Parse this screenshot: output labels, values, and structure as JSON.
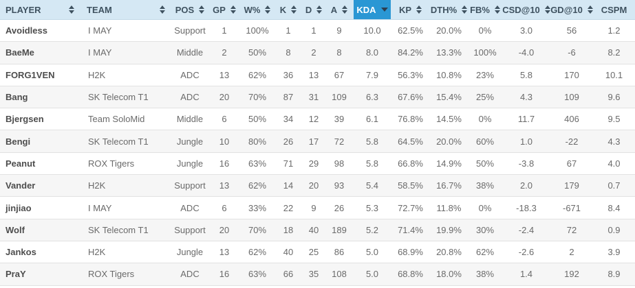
{
  "table": {
    "columns": [
      {
        "key": "player",
        "label": "PLAYER",
        "sort": "both",
        "active": false
      },
      {
        "key": "team",
        "label": "TEAM",
        "sort": "both",
        "active": false
      },
      {
        "key": "pos",
        "label": "POS",
        "sort": "both",
        "active": false
      },
      {
        "key": "gp",
        "label": "GP",
        "sort": "both",
        "active": false
      },
      {
        "key": "wpct",
        "label": "W%",
        "sort": "both",
        "active": false
      },
      {
        "key": "k",
        "label": "K",
        "sort": "both",
        "active": false
      },
      {
        "key": "d",
        "label": "D",
        "sort": "both",
        "active": false
      },
      {
        "key": "a",
        "label": "A",
        "sort": "both",
        "active": false
      },
      {
        "key": "kda",
        "label": "KDA",
        "sort": "desc",
        "active": true
      },
      {
        "key": "kp",
        "label": "KP",
        "sort": "both",
        "active": false
      },
      {
        "key": "dthpct",
        "label": "DTH%",
        "sort": "both",
        "active": false
      },
      {
        "key": "fbpct",
        "label": "FB%",
        "sort": "both",
        "active": false
      },
      {
        "key": "csd10",
        "label": "CSD@10",
        "sort": "both",
        "active": false
      },
      {
        "key": "gd10",
        "label": "GD@10",
        "sort": "both",
        "active": false
      },
      {
        "key": "cspm",
        "label": "CSPM",
        "sort": "none",
        "active": false
      }
    ],
    "rows": [
      [
        "Avoidless",
        "I MAY",
        "Support",
        "1",
        "100%",
        "1",
        "1",
        "9",
        "10.0",
        "62.5%",
        "20.0%",
        "0%",
        "3.0",
        "56",
        "1.2"
      ],
      [
        "BaeMe",
        "I MAY",
        "Middle",
        "2",
        "50%",
        "8",
        "2",
        "8",
        "8.0",
        "84.2%",
        "13.3%",
        "100%",
        "-4.0",
        "-6",
        "8.2"
      ],
      [
        "FORG1VEN",
        "H2K",
        "ADC",
        "13",
        "62%",
        "36",
        "13",
        "67",
        "7.9",
        "56.3%",
        "10.8%",
        "23%",
        "5.8",
        "170",
        "10.1"
      ],
      [
        "Bang",
        "SK Telecom T1",
        "ADC",
        "20",
        "70%",
        "87",
        "31",
        "109",
        "6.3",
        "67.6%",
        "15.4%",
        "25%",
        "4.3",
        "109",
        "9.6"
      ],
      [
        "Bjergsen",
        "Team SoloMid",
        "Middle",
        "6",
        "50%",
        "34",
        "12",
        "39",
        "6.1",
        "76.8%",
        "14.5%",
        "0%",
        "11.7",
        "406",
        "9.5"
      ],
      [
        "Bengi",
        "SK Telecom T1",
        "Jungle",
        "10",
        "80%",
        "26",
        "17",
        "72",
        "5.8",
        "64.5%",
        "20.0%",
        "60%",
        "1.0",
        "-22",
        "4.3"
      ],
      [
        "Peanut",
        "ROX Tigers",
        "Jungle",
        "16",
        "63%",
        "71",
        "29",
        "98",
        "5.8",
        "66.8%",
        "14.9%",
        "50%",
        "-3.8",
        "67",
        "4.0"
      ],
      [
        "Vander",
        "H2K",
        "Support",
        "13",
        "62%",
        "14",
        "20",
        "93",
        "5.4",
        "58.5%",
        "16.7%",
        "38%",
        "2.0",
        "179",
        "0.7"
      ],
      [
        "jinjiao",
        "I MAY",
        "ADC",
        "6",
        "33%",
        "22",
        "9",
        "26",
        "5.3",
        "72.7%",
        "11.8%",
        "0%",
        "-18.3",
        "-671",
        "8.4"
      ],
      [
        "Wolf",
        "SK Telecom T1",
        "Support",
        "20",
        "70%",
        "18",
        "40",
        "189",
        "5.2",
        "71.4%",
        "19.9%",
        "30%",
        "-2.4",
        "72",
        "0.9"
      ],
      [
        "Jankos",
        "H2K",
        "Jungle",
        "13",
        "62%",
        "40",
        "25",
        "86",
        "5.0",
        "68.9%",
        "20.8%",
        "62%",
        "-2.6",
        "2",
        "3.9"
      ],
      [
        "PraY",
        "ROX Tigers",
        "ADC",
        "16",
        "63%",
        "66",
        "35",
        "108",
        "5.0",
        "68.8%",
        "18.0%",
        "38%",
        "1.4",
        "192",
        "8.9"
      ]
    ],
    "sorted_by": "KDA",
    "sort_direction": "descending",
    "colors": {
      "header_bg": "#d5e8f4",
      "header_text": "#3f5260",
      "active_column_bg": "#2a97d4",
      "active_column_text": "#ffffff",
      "row_stripe": "#f6f6f6",
      "row_border": "#e2e2e2",
      "cell_text": "#6a6a6a",
      "player_text": "#4d4d4d"
    }
  }
}
